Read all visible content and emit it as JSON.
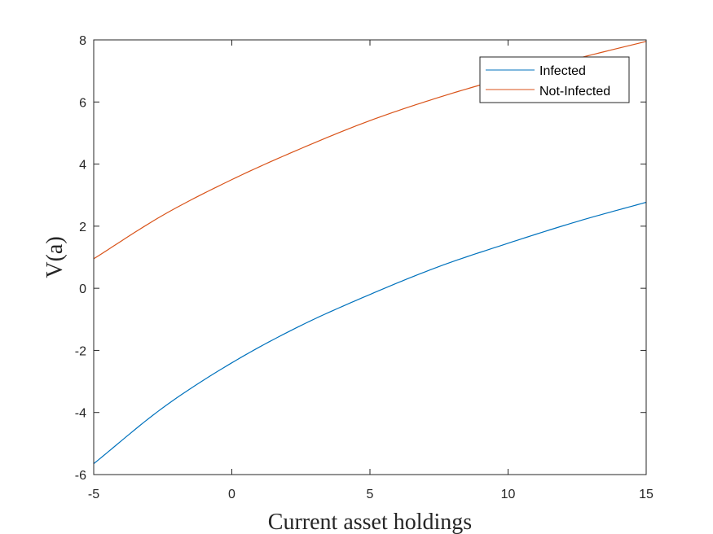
{
  "chart_data": {
    "type": "line",
    "title": "",
    "xlabel": "Current asset holdings",
    "ylabel": "V(a)",
    "xlim": [
      -5,
      15
    ],
    "ylim": [
      -6,
      8
    ],
    "xticks": [
      -5,
      0,
      5,
      10,
      15
    ],
    "yticks": [
      -6,
      -4,
      -2,
      0,
      2,
      4,
      6,
      8
    ],
    "grid": false,
    "legend_position": "top-right",
    "x": [
      -5,
      -2.5,
      0,
      2.5,
      5,
      7.5,
      10,
      12.5,
      15
    ],
    "series": [
      {
        "name": "Infected",
        "color": "#0072BD",
        "values": [
          -5.65,
          -3.85,
          -2.4,
          -1.2,
          -0.2,
          0.7,
          1.45,
          2.15,
          2.77
        ]
      },
      {
        "name": "Not-Infected",
        "color": "#D95319",
        "values": [
          0.95,
          2.35,
          3.5,
          4.5,
          5.4,
          6.15,
          6.8,
          7.4,
          7.95
        ]
      }
    ]
  }
}
